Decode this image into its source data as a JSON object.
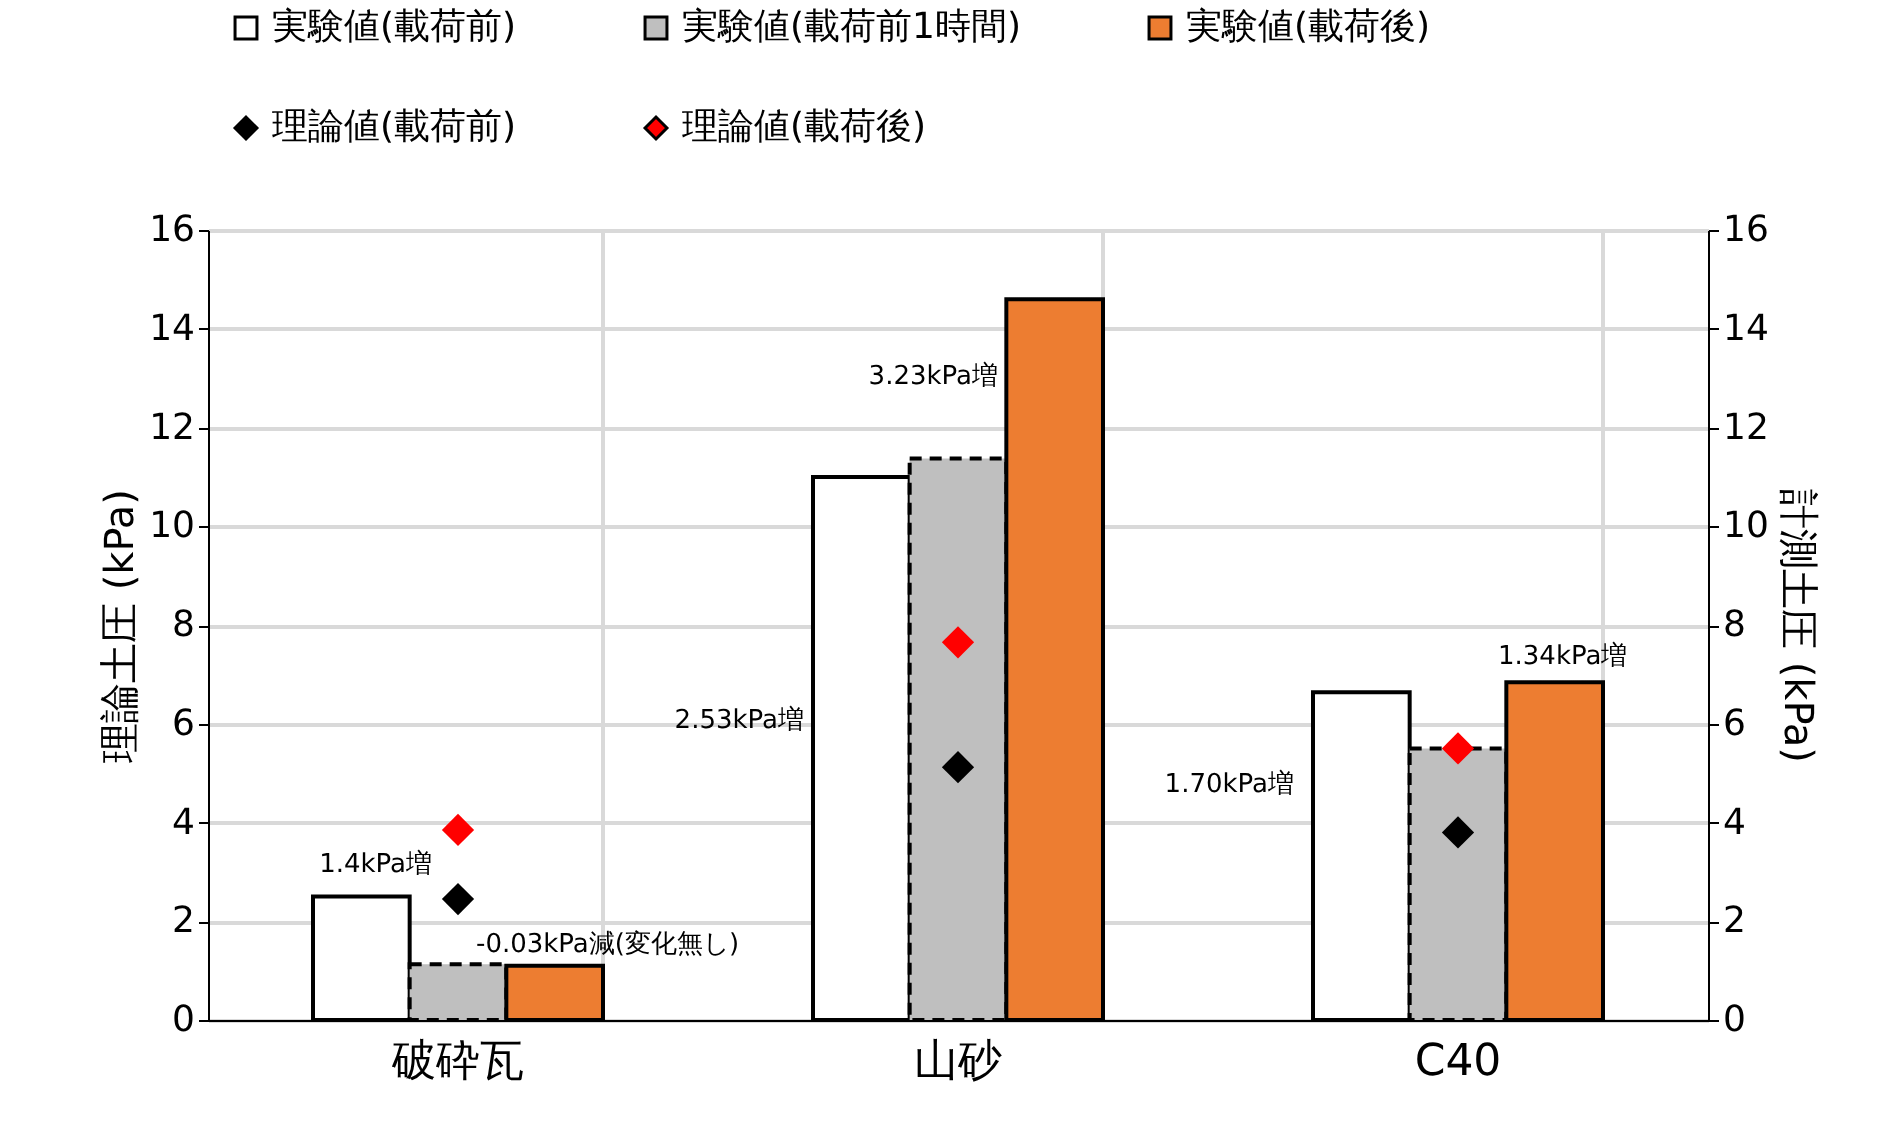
{
  "chart_data": {
    "type": "bar",
    "ylabel": "理論土圧 (kPa)",
    "y2label": "計測土圧 (kPa)",
    "categories": [
      "破砕瓦",
      "山砂",
      "C40"
    ],
    "series": [
      {
        "name": "実験値(載荷前)",
        "color": "#ffffff",
        "values": [
          2.5,
          11.0,
          6.64
        ],
        "axis": "y2"
      },
      {
        "name": "実験値(載荷前1時間)",
        "color": "#bfbfbf",
        "values": [
          1.13,
          11.37,
          5.5
        ],
        "axis": "y2",
        "line_style": "dashed"
      },
      {
        "name": "実験値(載荷後)",
        "color": "#ed7d31",
        "values": [
          1.1,
          14.6,
          6.84
        ],
        "axis": "y2"
      },
      {
        "name": "理論値(載荷前)",
        "color": "#000000",
        "values": [
          2.45,
          5.12,
          3.8
        ],
        "type": "scatter",
        "marker": "diamond"
      },
      {
        "name": "理論値(載荷後)",
        "color": "#ff0000",
        "values": [
          3.85,
          7.65,
          5.5
        ],
        "type": "scatter",
        "marker": "diamond"
      }
    ],
    "ylim": [
      0,
      16
    ],
    "yticks": [
      0,
      2,
      4,
      6,
      8,
      10,
      12,
      14,
      16
    ],
    "y2lim": [
      0,
      16
    ],
    "y2ticks": [
      0,
      2,
      4,
      6,
      8,
      10,
      12,
      14,
      16
    ],
    "grid": true,
    "legend": "top",
    "annotations": [
      "1.4kPa増",
      "-0.03kPa減(変化無し)",
      "3.23kPa増",
      "2.53kPa増",
      "1.70kPa増",
      "1.34kPa増"
    ]
  }
}
